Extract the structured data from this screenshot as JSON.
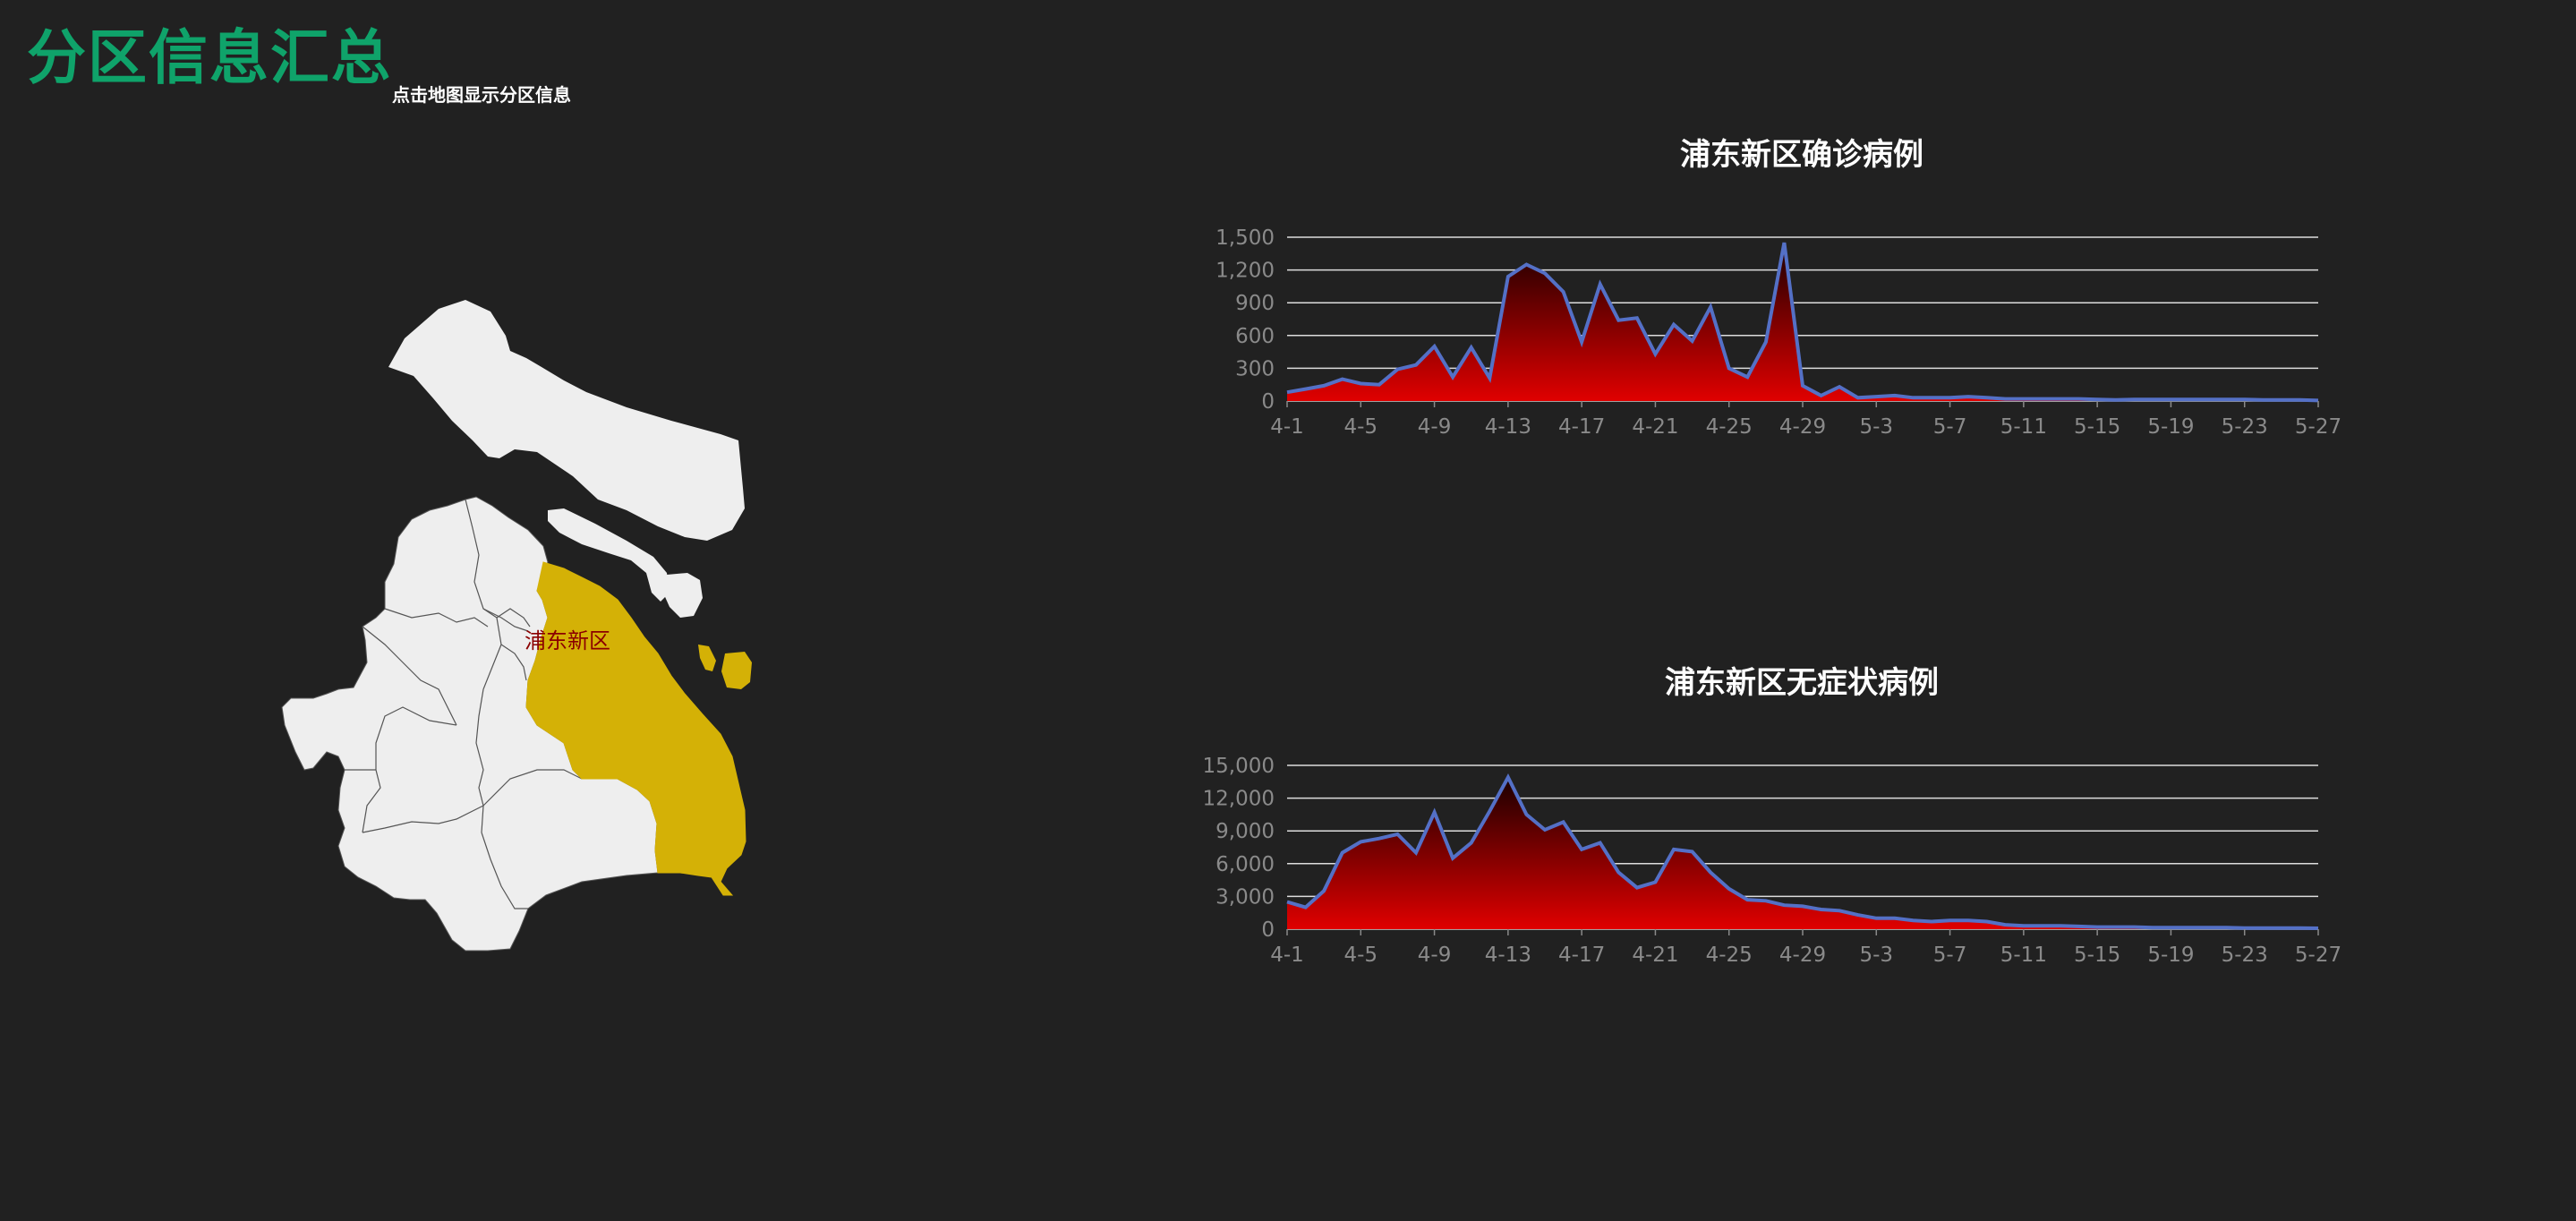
{
  "header": {
    "title": "分区信息汇总",
    "subtitle": "点击地图显示分区信息"
  },
  "map": {
    "selected_district": "浦东新区",
    "highlight_color": "#d4b106",
    "base_color": "#eeeeee"
  },
  "colors": {
    "background": "#212121",
    "title": "#0fa36a",
    "line": "#5470c6",
    "area_top": "#1a0000",
    "area_bottom": "#e00000",
    "grid": "#dddddd",
    "axis_text": "#8a8a8a"
  },
  "chart_data": [
    {
      "type": "area",
      "title": "浦东新区确诊病例",
      "ylim": [
        0,
        1500
      ],
      "y_ticks": [
        "0",
        "300",
        "600",
        "900",
        "1,200",
        "1,500"
      ],
      "y_tick_values": [
        0,
        300,
        600,
        900,
        1200,
        1500
      ],
      "x_tick_labels": [
        "4-1",
        "4-5",
        "4-9",
        "4-13",
        "4-17",
        "4-21",
        "4-25",
        "4-29",
        "5-3",
        "5-7",
        "5-11",
        "5-15",
        "5-19",
        "5-23",
        "5-27"
      ],
      "x": [
        "4-1",
        "4-2",
        "4-3",
        "4-4",
        "4-5",
        "4-6",
        "4-7",
        "4-8",
        "4-9",
        "4-10",
        "4-11",
        "4-12",
        "4-13",
        "4-14",
        "4-15",
        "4-16",
        "4-17",
        "4-18",
        "4-19",
        "4-20",
        "4-21",
        "4-22",
        "4-23",
        "4-24",
        "4-25",
        "4-26",
        "4-27",
        "4-28",
        "4-29",
        "4-30",
        "5-1",
        "5-2",
        "5-3",
        "5-4",
        "5-5",
        "5-6",
        "5-7",
        "5-8",
        "5-9",
        "5-10",
        "5-11",
        "5-12",
        "5-13",
        "5-14",
        "5-15",
        "5-16",
        "5-17",
        "5-18",
        "5-19",
        "5-20",
        "5-21",
        "5-22",
        "5-23",
        "5-24",
        "5-25",
        "5-26",
        "5-27"
      ],
      "series": [
        {
          "values": [
            80,
            110,
            140,
            200,
            160,
            150,
            290,
            330,
            500,
            220,
            490,
            210,
            1140,
            1250,
            1170,
            1000,
            540,
            1070,
            740,
            760,
            430,
            700,
            550,
            860,
            300,
            220,
            540,
            1450,
            140,
            50,
            130,
            30,
            40,
            50,
            30,
            30,
            30,
            40,
            30,
            20,
            20,
            20,
            20,
            20,
            15,
            10,
            15,
            15,
            15,
            15,
            15,
            15,
            15,
            10,
            10,
            10,
            5
          ]
        }
      ],
      "grid": true
    },
    {
      "type": "area",
      "title": "浦东新区无症状病例",
      "ylim": [
        0,
        15000
      ],
      "y_ticks": [
        "0",
        "3,000",
        "6,000",
        "9,000",
        "12,000",
        "15,000"
      ],
      "y_tick_values": [
        0,
        3000,
        6000,
        9000,
        12000,
        15000
      ],
      "x_tick_labels": [
        "4-1",
        "4-5",
        "4-9",
        "4-13",
        "4-17",
        "4-21",
        "4-25",
        "4-29",
        "5-3",
        "5-7",
        "5-11",
        "5-15",
        "5-19",
        "5-23",
        "5-27"
      ],
      "x": [
        "4-1",
        "4-2",
        "4-3",
        "4-4",
        "4-5",
        "4-6",
        "4-7",
        "4-8",
        "4-9",
        "4-10",
        "4-11",
        "4-12",
        "4-13",
        "4-14",
        "4-15",
        "4-16",
        "4-17",
        "4-18",
        "4-19",
        "4-20",
        "4-21",
        "4-22",
        "4-23",
        "4-24",
        "4-25",
        "4-26",
        "4-27",
        "4-28",
        "4-29",
        "4-30",
        "5-1",
        "5-2",
        "5-3",
        "5-4",
        "5-5",
        "5-6",
        "5-7",
        "5-8",
        "5-9",
        "5-10",
        "5-11",
        "5-12",
        "5-13",
        "5-14",
        "5-15",
        "5-16",
        "5-17",
        "5-18",
        "5-19",
        "5-20",
        "5-21",
        "5-22",
        "5-23",
        "5-24",
        "5-25",
        "5-26",
        "5-27"
      ],
      "series": [
        {
          "values": [
            2500,
            2000,
            3500,
            7000,
            8000,
            8300,
            8700,
            7000,
            10700,
            6500,
            7900,
            10800,
            13900,
            10500,
            9100,
            9800,
            7300,
            7900,
            5200,
            3800,
            4300,
            7300,
            7100,
            5200,
            3700,
            2700,
            2600,
            2200,
            2100,
            1800,
            1700,
            1300,
            1000,
            1000,
            800,
            700,
            800,
            800,
            700,
            400,
            300,
            300,
            300,
            250,
            200,
            200,
            200,
            150,
            150,
            150,
            150,
            150,
            100,
            100,
            100,
            100,
            80
          ]
        }
      ],
      "grid": true
    }
  ]
}
